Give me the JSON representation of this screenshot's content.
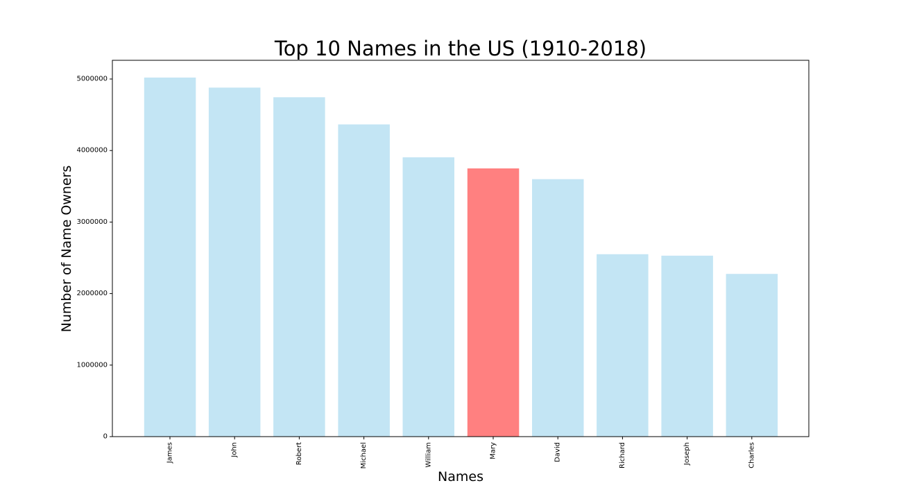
{
  "chart_data": {
    "type": "bar",
    "title": "Top 10 Names in the US (1910-2018)",
    "xlabel": "Names",
    "ylabel": "Number of Name Owners",
    "categories": [
      "James",
      "John",
      "Robert",
      "Michael",
      "William",
      "Mary",
      "David",
      "Richard",
      "Joseph",
      "Charles"
    ],
    "values": [
      5020000,
      4880000,
      4745000,
      4365000,
      3905000,
      3750000,
      3600000,
      2550000,
      2530000,
      2275000
    ],
    "highlight_index": 5,
    "bar_color": "#c3e5f4",
    "highlight_color": "#ff8080",
    "ylim": [
      0,
      5250000
    ],
    "yticks": [
      0,
      1000000,
      2000000,
      3000000,
      4000000,
      5000000
    ],
    "ytick_labels": [
      "0",
      "1000000",
      "2000000",
      "3000000",
      "4000000",
      "5000000"
    ],
    "grid": false,
    "legend": "none"
  }
}
